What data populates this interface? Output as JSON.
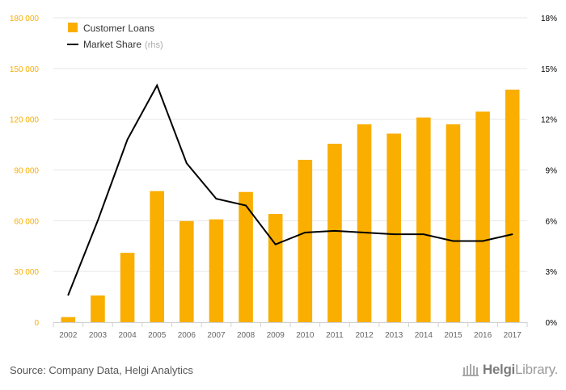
{
  "chart_data": {
    "type": "bar",
    "categories": [
      "2002",
      "2003",
      "2004",
      "2005",
      "2006",
      "2007",
      "2008",
      "2009",
      "2010",
      "2011",
      "2012",
      "2013",
      "2014",
      "2015",
      "2016",
      "2017"
    ],
    "series": [
      {
        "name": "Customer Loans",
        "type": "bar",
        "axis": "left",
        "color": "#f9ae00",
        "values": [
          3000,
          15800,
          41000,
          77500,
          59800,
          60800,
          77000,
          64000,
          96000,
          105500,
          117000,
          111500,
          121000,
          117000,
          124500,
          137500
        ]
      },
      {
        "name": "Market Share",
        "type": "line",
        "axis": "right",
        "color": "#000000",
        "values": [
          1.6,
          6.0,
          10.8,
          14.0,
          9.4,
          7.3,
          6.9,
          4.6,
          5.3,
          5.4,
          5.3,
          5.2,
          5.2,
          4.8,
          4.8,
          5.2
        ]
      }
    ],
    "legend": {
      "items": [
        {
          "label": "Customer Loans",
          "suffix": ""
        },
        {
          "label": "Market Share",
          "suffix": "(rhs)"
        }
      ],
      "position": "top-left"
    },
    "left_axis": {
      "ylim": [
        0,
        180000
      ],
      "ticks": [
        0,
        30000,
        60000,
        90000,
        120000,
        150000,
        180000
      ],
      "tick_labels": [
        "0",
        "30 000",
        "60 000",
        "90 000",
        "120 000",
        "150 000",
        "180 000"
      ],
      "color": "#f9ae00"
    },
    "right_axis": {
      "ylim": [
        0,
        18
      ],
      "ticks": [
        0,
        3,
        6,
        9,
        12,
        15,
        18
      ],
      "tick_labels": [
        "0%",
        "3%",
        "6%",
        "9%",
        "12%",
        "15%",
        "18%"
      ],
      "color": "#000000"
    },
    "grid": true,
    "title": "",
    "xlabel": "",
    "ylabel": ""
  },
  "footer": {
    "source": "Source: Company Data, Helgi Analytics",
    "logo_part1": "Helgi",
    "logo_part2": "Library."
  },
  "colors": {
    "bar": "#f9ae00",
    "line": "#000000",
    "grid": "#e6e6e6",
    "x_tick_text": "#666666",
    "legend_suffix": "#aaaaaa"
  }
}
